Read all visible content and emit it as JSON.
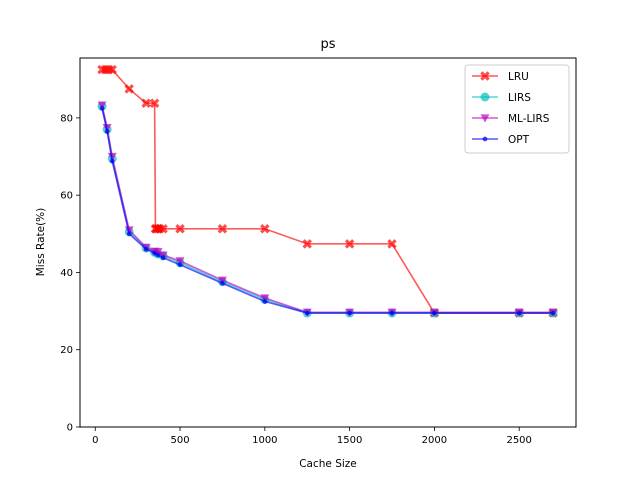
{
  "chart_data": {
    "type": "line",
    "title": "ps",
    "xlabel": "Cache Size",
    "ylabel": "Miss Rate(%)",
    "xlim": [
      -90,
      2835
    ],
    "ylim": [
      0,
      95.5
    ],
    "xticks": [
      0,
      500,
      1000,
      1500,
      2000,
      2500
    ],
    "yticks": [
      0,
      20,
      40,
      60,
      80
    ],
    "legend_position": "upper right",
    "grid": false,
    "series": [
      {
        "name": "LRU",
        "color": "#ff0000",
        "marker": "X",
        "x": [
          40,
          60,
          80,
          100,
          200,
          300,
          350,
          355,
          360,
          370,
          380,
          400,
          500,
          750,
          1000,
          1250,
          1500,
          1750,
          2000,
          2500,
          2700
        ],
        "y": [
          92.5,
          92.5,
          92.5,
          92.5,
          87.5,
          83.8,
          83.8,
          51.3,
          51.3,
          51.3,
          51.3,
          51.3,
          51.3,
          51.3,
          51.3,
          47.4,
          47.4,
          47.4,
          29.5,
          29.5,
          29.5
        ]
      },
      {
        "name": "LIRS",
        "color": "#00bfbf",
        "marker": "o",
        "x": [
          40,
          70,
          100,
          200,
          300,
          350,
          370,
          400,
          500,
          750,
          1000,
          1250,
          1500,
          1750,
          2000,
          2500,
          2700
        ],
        "y": [
          83.0,
          77.0,
          69.5,
          50.5,
          46.3,
          45.2,
          44.8,
          44.3,
          42.5,
          37.6,
          33.0,
          29.5,
          29.5,
          29.5,
          29.5,
          29.5,
          29.5
        ]
      },
      {
        "name": "ML-LIRS",
        "color": "#bf00bf",
        "marker": "v",
        "x": [
          40,
          70,
          100,
          200,
          300,
          350,
          370,
          400,
          500,
          750,
          1000,
          1250,
          1500,
          1750,
          2000,
          2500,
          2700
        ],
        "y": [
          83.3,
          77.5,
          70.0,
          51.0,
          46.5,
          45.5,
          45.4,
          44.5,
          43.0,
          38.0,
          33.4,
          29.7,
          29.7,
          29.7,
          29.7,
          29.7,
          29.7
        ]
      },
      {
        "name": "OPT",
        "color": "#0000ff",
        "marker": ".",
        "x": [
          40,
          70,
          100,
          200,
          300,
          350,
          370,
          400,
          500,
          750,
          1000,
          1250,
          1500,
          1750,
          2000,
          2500,
          2700
        ],
        "y": [
          82.5,
          76.5,
          68.8,
          50.0,
          46.0,
          45.0,
          44.5,
          43.8,
          42.0,
          37.2,
          32.5,
          29.5,
          29.5,
          29.5,
          29.5,
          29.5,
          29.5
        ]
      }
    ]
  }
}
